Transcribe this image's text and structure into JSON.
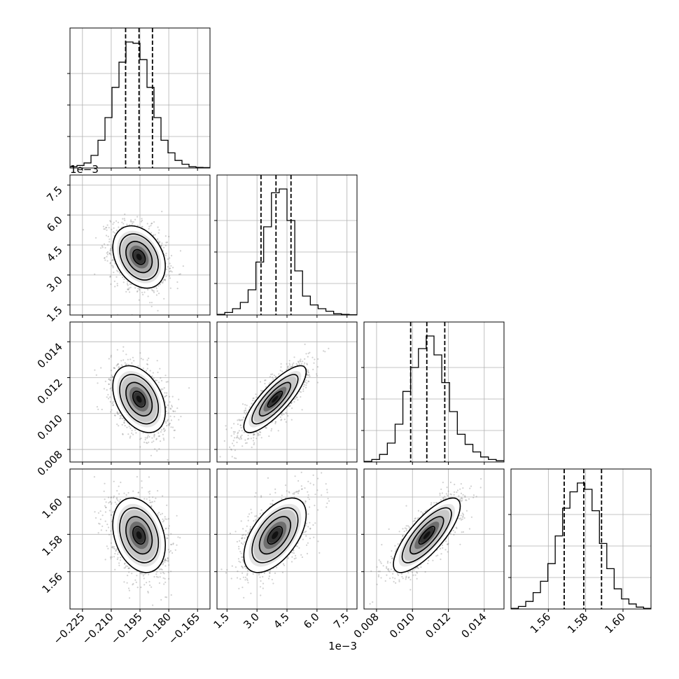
{
  "chart_data": {
    "type": "corner",
    "grid": true,
    "params": [
      {
        "ticks": [
          -0.225,
          -0.21,
          -0.195,
          -0.18,
          -0.165
        ],
        "tick_labels": [
          "−0.225",
          "−0.210",
          "−0.195",
          "−0.180",
          "−0.165"
        ],
        "range": [
          -0.2315,
          -0.1585
        ],
        "quantiles": [
          -0.2025,
          -0.1955,
          -0.1885
        ],
        "hist": [
          1,
          2,
          4,
          10,
          22,
          40,
          64,
          84,
          100,
          99,
          86,
          64,
          40,
          22,
          12,
          6,
          3,
          1,
          0.5,
          0.3
        ],
        "offset": ""
      },
      {
        "ticks": [
          1.5,
          3.0,
          4.5,
          6.0,
          7.5
        ],
        "tick_labels": [
          "1.5",
          "3.0",
          "4.5",
          "6.0",
          "7.5"
        ],
        "range": [
          1.0,
          8.0
        ],
        "quantiles": [
          3.2,
          3.95,
          4.7
        ],
        "hist": [
          0.5,
          2,
          5,
          10,
          20,
          42,
          70,
          97,
          100,
          75,
          35,
          15,
          8,
          5,
          3,
          1,
          0.5,
          0.2
        ],
        "offset": "1e−3"
      },
      {
        "ticks": [
          0.008,
          0.01,
          0.012,
          0.014
        ],
        "tick_labels": [
          "0.008",
          "0.010",
          "0.012",
          "0.014"
        ],
        "range": [
          0.0073,
          0.0151
        ],
        "quantiles": [
          0.0099,
          0.0108,
          0.0118
        ],
        "hist": [
          0.5,
          2,
          6,
          15,
          30,
          56,
          75,
          90,
          100,
          85,
          63,
          40,
          22,
          14,
          8,
          4,
          2,
          1
        ],
        "offset": ""
      },
      {
        "ticks": [
          1.56,
          1.58,
          1.6
        ],
        "tick_labels": [
          "1.56",
          "1.58",
          "1.60"
        ],
        "range": [
          1.54,
          1.615
        ],
        "quantiles": [
          1.5685,
          1.579,
          1.5885
        ],
        "hist": [
          0.5,
          2,
          6,
          13,
          22,
          36,
          58,
          80,
          93,
          100,
          95,
          78,
          52,
          32,
          16,
          8,
          4,
          1.5,
          0.5
        ],
        "offset": ""
      }
    ],
    "pairs": [
      {
        "row": 1,
        "col": 0,
        "center": [
          -0.1955,
          3.9
        ],
        "sigma": [
          0.0072,
          0.82
        ],
        "rho": -0.3
      },
      {
        "row": 2,
        "col": 0,
        "center": [
          -0.1955,
          0.0108
        ],
        "sigma": [
          0.0072,
          0.00098
        ],
        "rho": -0.38
      },
      {
        "row": 2,
        "col": 1,
        "center": [
          3.9,
          0.0108
        ],
        "sigma": [
          0.82,
          0.00098
        ],
        "rho": 0.82
      },
      {
        "row": 3,
        "col": 0,
        "center": [
          -0.1955,
          1.5795
        ],
        "sigma": [
          0.0072,
          0.0105
        ],
        "rho": -0.28
      },
      {
        "row": 3,
        "col": 1,
        "center": [
          3.9,
          1.5795
        ],
        "sigma": [
          0.82,
          0.0105
        ],
        "rho": 0.55
      },
      {
        "row": 3,
        "col": 2,
        "center": [
          0.0108,
          1.5795
        ],
        "sigma": [
          0.00098,
          0.0105
        ],
        "rho": 0.78
      }
    ]
  }
}
